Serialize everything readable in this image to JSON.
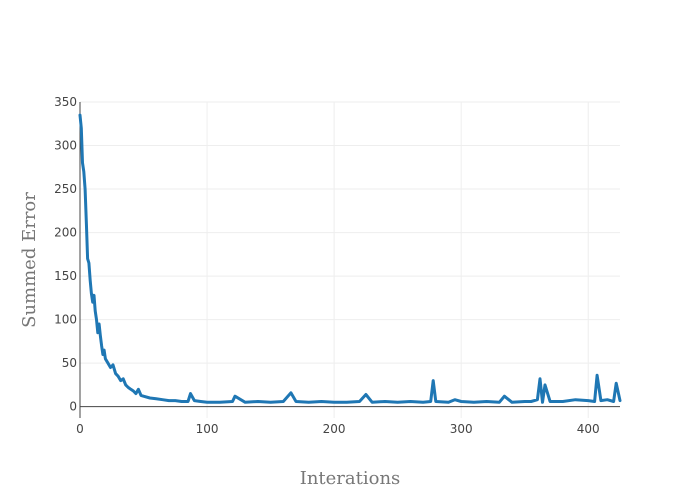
{
  "chart_data": {
    "type": "line",
    "title": "",
    "xlabel": "Interations",
    "ylabel": "Summed Error",
    "xlim": [
      0,
      425
    ],
    "ylim": [
      -13,
      350
    ],
    "grid": true,
    "legend": "none",
    "line_color": "#1f77b4",
    "grid_color": "#eeeeee",
    "axis_color": "#444444",
    "x_ticks": [
      {
        "value": 0,
        "label": "0"
      },
      {
        "value": 100,
        "label": "100"
      },
      {
        "value": 200,
        "label": "200"
      },
      {
        "value": 300,
        "label": "300"
      },
      {
        "value": 400,
        "label": "400"
      }
    ],
    "y_ticks": [
      {
        "value": 0,
        "label": "0"
      },
      {
        "value": 50,
        "label": "50"
      },
      {
        "value": 100,
        "label": "100"
      },
      {
        "value": 150,
        "label": "150"
      },
      {
        "value": 200,
        "label": "200"
      },
      {
        "value": 250,
        "label": "250"
      },
      {
        "value": 300,
        "label": "300"
      },
      {
        "value": 350,
        "label": "350"
      }
    ],
    "series": [
      {
        "x": [
          0,
          1,
          2,
          3,
          4,
          5,
          6,
          7,
          8,
          9,
          10,
          11,
          12,
          13,
          14,
          15,
          16,
          17,
          18,
          19,
          20,
          22,
          24,
          26,
          28,
          30,
          32,
          34,
          36,
          38,
          40,
          42,
          44,
          46,
          48,
          50,
          55,
          60,
          65,
          70,
          75,
          80,
          85,
          87,
          90,
          95,
          100,
          110,
          120,
          122,
          130,
          140,
          150,
          160,
          166,
          170,
          180,
          190,
          200,
          210,
          220,
          225,
          230,
          240,
          250,
          260,
          270,
          276,
          278,
          280,
          290,
          295,
          300,
          310,
          320,
          330,
          334,
          340,
          350,
          355,
          360,
          362,
          364,
          366,
          370,
          380,
          390,
          400,
          405,
          407,
          410,
          415,
          420,
          422,
          425
        ],
        "y": [
          335,
          320,
          280,
          270,
          250,
          210,
          170,
          165,
          145,
          130,
          120,
          128,
          110,
          100,
          85,
          95,
          82,
          70,
          60,
          65,
          55,
          50,
          45,
          48,
          38,
          35,
          30,
          32,
          25,
          22,
          20,
          18,
          15,
          20,
          13,
          12,
          10,
          9,
          8,
          7,
          7,
          6,
          6,
          15,
          7,
          6,
          5,
          5,
          6,
          12,
          5,
          6,
          5,
          6,
          16,
          6,
          5,
          6,
          5,
          5,
          6,
          14,
          5,
          6,
          5,
          6,
          5,
          6,
          30,
          6,
          5,
          8,
          6,
          5,
          6,
          5,
          12,
          5,
          6,
          6,
          8,
          32,
          5,
          25,
          6,
          6,
          8,
          7,
          6,
          36,
          7,
          8,
          6,
          27,
          7
        ]
      }
    ]
  }
}
